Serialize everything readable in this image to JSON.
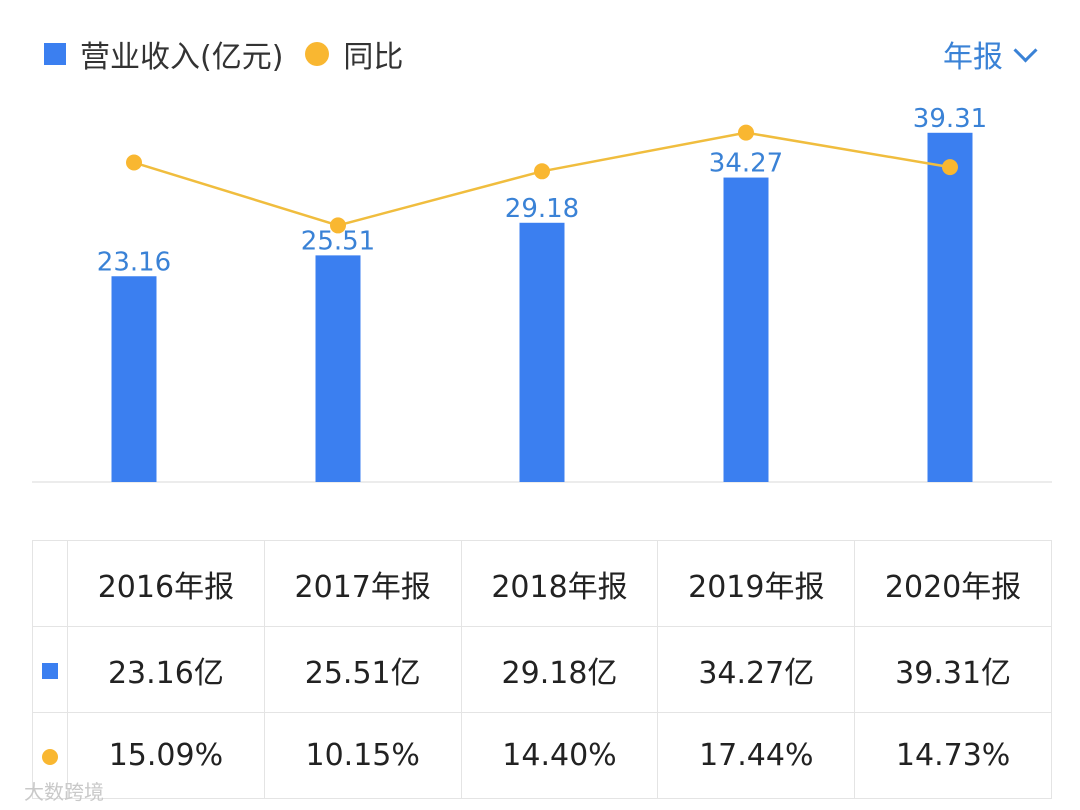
{
  "legend": {
    "bar_label": "营业收入(亿元)",
    "line_label": "同比"
  },
  "period_selector": {
    "label": "年报"
  },
  "colors": {
    "bar": "#3b7ff0",
    "bar_label": "#3a82d6",
    "line": "#f0bd3e",
    "point": "#f9b731",
    "yoy_text": "#d9484a"
  },
  "chart_data": {
    "type": "bar",
    "title": "",
    "categories": [
      "2016年报",
      "2017年报",
      "2018年报",
      "2019年报",
      "2020年报"
    ],
    "series": [
      {
        "name": "营业收入(亿元)",
        "type": "bar",
        "values": [
          23.16,
          25.51,
          29.18,
          34.27,
          39.31
        ],
        "labels": [
          "23.16",
          "25.51",
          "29.18",
          "34.27",
          "39.31"
        ]
      },
      {
        "name": "同比",
        "type": "line",
        "values": [
          15.09,
          10.15,
          14.4,
          17.44,
          14.73
        ]
      }
    ],
    "ylim": [
      0,
      43
    ],
    "ylim_secondary": [
      -10,
      20
    ]
  },
  "table": {
    "header": [
      "2016年报",
      "2017年报",
      "2018年报",
      "2019年报",
      "2020年报"
    ],
    "revenue": [
      "23.16亿",
      "25.51亿",
      "29.18亿",
      "34.27亿",
      "39.31亿"
    ],
    "yoy": [
      "15.09%",
      "10.15%",
      "14.40%",
      "17.44%",
      "14.73%"
    ]
  },
  "watermark": "大数跨境"
}
